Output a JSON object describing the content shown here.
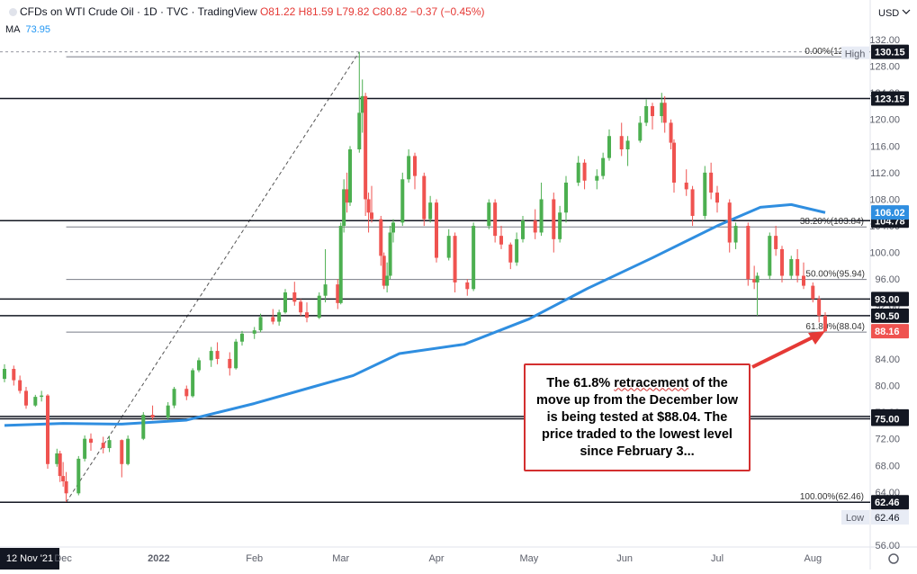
{
  "header": {
    "title": "CFDs on WTI Crude Oil · 1D · TVC · TradingView",
    "ohlc": "O81.22 H81.59 L79.82 C80.82 −0.37 (−0.45%)",
    "ma_label": "MA",
    "ma_value": "73.95",
    "currency": "USD"
  },
  "callout": {
    "text_before": "The 61.8% ",
    "text_underlined": "retracement",
    "text_after": " of the move up from the December low is being tested at $88.04. The price traded to the lowest level since February 3..."
  },
  "colors": {
    "up": "#26a69a",
    "candle_up": "#4caf50",
    "down": "#ef5350",
    "ma": "#2f8ee0",
    "arrow": "#e53935",
    "current_price_bg": "#ef5350"
  },
  "chart_data": {
    "type": "candlestick",
    "symbol": "CFDs on WTI Crude Oil",
    "timeframe": "1D",
    "ylim": [
      56,
      132
    ],
    "y_ticks": [
      "132.00",
      "128.00",
      "124.00",
      "120.00",
      "116.00",
      "112.00",
      "108.00",
      "104.00",
      "100.00",
      "96.00",
      "92.00",
      "88.00",
      "84.00",
      "80.00",
      "76.00",
      "72.00",
      "68.00",
      "64.00",
      "60.00",
      "56.00"
    ],
    "x_ticks": [
      {
        "label": "12 Nov '21",
        "date": "2021-11-12",
        "boxed": true
      },
      {
        "label": "Dec",
        "date": "2021-12-01"
      },
      {
        "label": "2022",
        "date": "2022-01-01",
        "bold": true
      },
      {
        "label": "Feb",
        "date": "2022-02-01"
      },
      {
        "label": "Mar",
        "date": "2022-03-01"
      },
      {
        "label": "Apr",
        "date": "2022-04-01"
      },
      {
        "label": "May",
        "date": "2022-05-01"
      },
      {
        "label": "Jun",
        "date": "2022-06-01"
      },
      {
        "label": "Jul",
        "date": "2022-07-01"
      },
      {
        "label": "Aug",
        "date": "2022-08-01"
      }
    ],
    "horizontal_levels": [
      {
        "price": 123.15,
        "label": "123.15"
      },
      {
        "price": 104.78,
        "label": "104.78"
      },
      {
        "price": 93.0,
        "label": "93.00"
      },
      {
        "price": 90.5,
        "label": "90.50"
      },
      {
        "price": 75.35,
        "label": "75.35"
      },
      {
        "price": 75.0,
        "label": "75.00"
      },
      {
        "price": 62.46,
        "label": "62.46"
      }
    ],
    "fibonacci": [
      {
        "level": "0.00%",
        "price": 129.42,
        "label": "0.00%(129.42)"
      },
      {
        "level": "38.20%",
        "price": 103.84,
        "label": "38.20%(103.84)"
      },
      {
        "level": "50.00%",
        "price": 95.94,
        "label": "50.00%(95.94)"
      },
      {
        "level": "61.80%",
        "price": 88.04,
        "label": "61.80%(88.04)"
      },
      {
        "level": "100.00%",
        "price": 62.46,
        "label": "100.00%(62.46)"
      }
    ],
    "price_tags": [
      {
        "price": 130.15,
        "label": "130.15",
        "sub": "High"
      },
      {
        "price": 106.02,
        "label": "106.02",
        "kind": "ma"
      },
      {
        "price": 88.16,
        "label": "88.16",
        "kind": "current"
      },
      {
        "price": 62.46,
        "label": "62.46",
        "sub": "Low",
        "sub_value": "62.46"
      }
    ],
    "moving_average": {
      "name": "MA",
      "points": [
        [
          "2021-11-12",
          74.0
        ],
        [
          "2021-12-01",
          74.3
        ],
        [
          "2021-12-20",
          74.2
        ],
        [
          "2022-01-10",
          74.8
        ],
        [
          "2022-02-01",
          77.3
        ],
        [
          "2022-02-20",
          79.8
        ],
        [
          "2022-03-05",
          81.5
        ],
        [
          "2022-03-20",
          84.8
        ],
        [
          "2022-04-10",
          86.2
        ],
        [
          "2022-05-01",
          90.0
        ],
        [
          "2022-05-20",
          94.6
        ],
        [
          "2022-06-10",
          99.2
        ],
        [
          "2022-07-01",
          104.0
        ],
        [
          "2022-07-15",
          106.8
        ],
        [
          "2022-07-25",
          107.2
        ],
        [
          "2022-08-05",
          106.0
        ]
      ]
    },
    "candles": [
      [
        "2021-11-12",
        81.0,
        83.2,
        80.5,
        82.5
      ],
      [
        "2021-11-15",
        82.5,
        83.0,
        80.0,
        80.8
      ],
      [
        "2021-11-17",
        80.8,
        81.5,
        78.8,
        79.2
      ],
      [
        "2021-11-19",
        79.2,
        79.8,
        76.5,
        77.0
      ],
      [
        "2021-11-22",
        77.0,
        78.6,
        76.8,
        78.3
      ],
      [
        "2021-11-24",
        78.3,
        79.2,
        77.6,
        78.5
      ],
      [
        "2021-11-26",
        78.5,
        78.7,
        67.5,
        68.2
      ],
      [
        "2021-11-29",
        68.2,
        70.5,
        67.8,
        69.8
      ],
      [
        "2021-11-30",
        69.8,
        70.2,
        65.5,
        66.4
      ],
      [
        "2021-12-01",
        66.4,
        68.5,
        64.8,
        65.6
      ],
      [
        "2021-12-02",
        65.6,
        67.0,
        62.5,
        63.8
      ],
      [
        "2021-12-06",
        63.8,
        69.4,
        63.5,
        69.0
      ],
      [
        "2021-12-08",
        69.0,
        72.5,
        68.6,
        72.0
      ],
      [
        "2021-12-10",
        72.0,
        72.8,
        70.2,
        71.4
      ],
      [
        "2021-12-14",
        71.4,
        72.3,
        69.8,
        70.6
      ],
      [
        "2021-12-16",
        70.6,
        72.4,
        70.0,
        71.8
      ],
      [
        "2021-12-20",
        71.8,
        71.9,
        66.2,
        68.2
      ],
      [
        "2021-12-22",
        68.2,
        72.5,
        68.0,
        72.0
      ],
      [
        "2021-12-27",
        72.0,
        76.0,
        71.8,
        75.6
      ],
      [
        "2021-12-30",
        75.6,
        77.0,
        74.8,
        75.2
      ],
      [
        "2022-01-04",
        75.2,
        77.5,
        74.8,
        77.0
      ],
      [
        "2022-01-06",
        77.0,
        79.8,
        76.6,
        79.5
      ],
      [
        "2022-01-10",
        79.5,
        80.0,
        77.8,
        78.4
      ],
      [
        "2022-01-12",
        78.4,
        82.6,
        78.2,
        82.3
      ],
      [
        "2022-01-14",
        82.3,
        84.2,
        82.0,
        83.8
      ],
      [
        "2022-01-18",
        83.8,
        85.8,
        82.8,
        85.2
      ],
      [
        "2022-01-20",
        85.2,
        86.5,
        83.2,
        84.0
      ],
      [
        "2022-01-24",
        84.0,
        85.0,
        81.5,
        82.6
      ],
      [
        "2022-01-26",
        82.6,
        87.0,
        82.4,
        86.6
      ],
      [
        "2022-01-28",
        86.6,
        88.2,
        86.0,
        87.8
      ],
      [
        "2022-02-01",
        87.8,
        88.8,
        87.0,
        88.3
      ],
      [
        "2022-02-03",
        88.3,
        90.8,
        88.0,
        90.3
      ],
      [
        "2022-02-07",
        90.3,
        91.5,
        89.2,
        89.6
      ],
      [
        "2022-02-09",
        89.6,
        91.4,
        89.0,
        91.0
      ],
      [
        "2022-02-11",
        91.0,
        94.5,
        90.8,
        94.0
      ],
      [
        "2022-02-14",
        94.0,
        95.6,
        92.0,
        92.6
      ],
      [
        "2022-02-16",
        92.6,
        93.0,
        90.5,
        91.0
      ],
      [
        "2022-02-18",
        91.0,
        92.5,
        89.5,
        90.2
      ],
      [
        "2022-02-22",
        90.2,
        94.0,
        90.0,
        93.5
      ],
      [
        "2022-02-24",
        93.5,
        100.5,
        92.5,
        95.2
      ],
      [
        "2022-02-28",
        95.2,
        96.0,
        91.5,
        92.4
      ],
      [
        "2022-03-01",
        92.4,
        104.5,
        92.2,
        104.0
      ],
      [
        "2022-03-02",
        104.0,
        111.0,
        103.0,
        109.5
      ],
      [
        "2022-03-03",
        109.5,
        112.0,
        106.0,
        107.5
      ],
      [
        "2022-03-04",
        107.5,
        116.0,
        107.0,
        115.5
      ],
      [
        "2022-03-07",
        115.5,
        130.15,
        115.0,
        121.0
      ],
      [
        "2022-03-08",
        121.0,
        126.0,
        118.0,
        123.5
      ],
      [
        "2022-03-09",
        123.5,
        124.0,
        105.5,
        108.0
      ],
      [
        "2022-03-10",
        108.0,
        109.0,
        103.0,
        106.0
      ],
      [
        "2022-03-11",
        106.0,
        110.0,
        104.5,
        105.0
      ],
      [
        "2022-03-14",
        105.0,
        105.5,
        98.0,
        99.5
      ],
      [
        "2022-03-15",
        99.5,
        100.0,
        94.5,
        95.0
      ],
      [
        "2022-03-16",
        95.0,
        98.5,
        94.0,
        96.5
      ],
      [
        "2022-03-17",
        96.5,
        104.0,
        96.0,
        103.0
      ],
      [
        "2022-03-18",
        103.0,
        105.0,
        101.5,
        104.5
      ],
      [
        "2022-03-21",
        104.5,
        112.0,
        104.0,
        111.0
      ],
      [
        "2022-03-23",
        111.0,
        115.5,
        110.5,
        114.5
      ],
      [
        "2022-03-25",
        114.5,
        115.0,
        109.5,
        111.5
      ],
      [
        "2022-03-28",
        111.5,
        112.0,
        104.0,
        105.0
      ],
      [
        "2022-03-30",
        105.0,
        108.5,
        104.5,
        107.5
      ],
      [
        "2022-04-01",
        107.5,
        108.0,
        98.5,
        99.2
      ],
      [
        "2022-04-05",
        99.2,
        103.5,
        98.8,
        102.5
      ],
      [
        "2022-04-07",
        102.5,
        103.0,
        94.0,
        95.5
      ],
      [
        "2022-04-11",
        95.5,
        96.0,
        93.5,
        94.5
      ],
      [
        "2022-04-13",
        94.5,
        104.5,
        94.2,
        104.0
      ],
      [
        "2022-04-18",
        104.0,
        108.0,
        103.5,
        107.5
      ],
      [
        "2022-04-20",
        107.5,
        108.0,
        101.5,
        102.5
      ],
      [
        "2022-04-22",
        102.5,
        104.0,
        100.5,
        101.2
      ],
      [
        "2022-04-25",
        101.2,
        101.5,
        97.5,
        98.5
      ],
      [
        "2022-04-27",
        98.5,
        103.0,
        98.0,
        102.0
      ],
      [
        "2022-04-29",
        102.0,
        105.5,
        101.5,
        104.8
      ],
      [
        "2022-05-03",
        104.8,
        106.5,
        102.0,
        103.0
      ],
      [
        "2022-05-05",
        103.0,
        110.5,
        102.5,
        108.0
      ],
      [
        "2022-05-09",
        108.0,
        109.0,
        100.0,
        102.0
      ],
      [
        "2022-05-11",
        102.0,
        107.0,
        101.5,
        106.0
      ],
      [
        "2022-05-13",
        106.0,
        111.5,
        104.5,
        110.5
      ],
      [
        "2022-05-17",
        110.5,
        114.5,
        110.0,
        113.5
      ],
      [
        "2022-05-19",
        113.5,
        114.0,
        109.5,
        110.8
      ],
      [
        "2022-05-23",
        110.8,
        112.5,
        109.5,
        111.5
      ],
      [
        "2022-05-25",
        111.5,
        115.0,
        111.0,
        114.2
      ],
      [
        "2022-05-27",
        114.2,
        118.5,
        113.8,
        117.5
      ],
      [
        "2022-05-31",
        117.5,
        119.5,
        114.5,
        115.5
      ],
      [
        "2022-06-02",
        115.5,
        117.5,
        113.0,
        116.8
      ],
      [
        "2022-06-06",
        116.8,
        120.5,
        116.5,
        119.5
      ],
      [
        "2022-06-08",
        119.5,
        123.0,
        119.0,
        122.0
      ],
      [
        "2022-06-10",
        122.0,
        122.5,
        118.5,
        120.5
      ],
      [
        "2022-06-13",
        120.5,
        124.0,
        119.5,
        122.5
      ],
      [
        "2022-06-14",
        122.5,
        123.5,
        118.0,
        119.5
      ],
      [
        "2022-06-16",
        119.5,
        120.0,
        115.5,
        116.5
      ],
      [
        "2022-06-17",
        116.5,
        117.0,
        109.0,
        110.5
      ],
      [
        "2022-06-21",
        110.5,
        112.5,
        108.5,
        109.5
      ],
      [
        "2022-06-23",
        109.5,
        110.0,
        104.0,
        105.5
      ],
      [
        "2022-06-27",
        105.5,
        113.0,
        105.0,
        112.0
      ],
      [
        "2022-06-29",
        112.0,
        113.5,
        108.0,
        109.0
      ],
      [
        "2022-07-01",
        109.0,
        110.0,
        106.0,
        107.5
      ],
      [
        "2022-07-05",
        107.5,
        108.0,
        100.0,
        101.5
      ],
      [
        "2022-07-07",
        101.5,
        104.5,
        100.5,
        104.0
      ],
      [
        "2022-07-11",
        104.0,
        104.5,
        95.0,
        96.0
      ],
      [
        "2022-07-13",
        96.0,
        98.0,
        94.5,
        95.5
      ],
      [
        "2022-07-14",
        95.5,
        97.0,
        90.5,
        96.5
      ],
      [
        "2022-07-18",
        96.5,
        103.0,
        96.0,
        102.5
      ],
      [
        "2022-07-20",
        102.5,
        104.0,
        99.5,
        100.5
      ],
      [
        "2022-07-22",
        100.5,
        101.0,
        95.5,
        96.5
      ],
      [
        "2022-07-25",
        96.5,
        99.5,
        96.0,
        99.0
      ],
      [
        "2022-07-27",
        99.0,
        100.5,
        95.5,
        96.5
      ],
      [
        "2022-07-29",
        96.5,
        98.5,
        94.5,
        95.0
      ],
      [
        "2022-08-01",
        95.0,
        95.5,
        92.5,
        93.0
      ],
      [
        "2022-08-03",
        93.0,
        93.5,
        89.5,
        90.5
      ],
      [
        "2022-08-05",
        90.5,
        91.0,
        88.1,
        88.16
      ]
    ]
  }
}
